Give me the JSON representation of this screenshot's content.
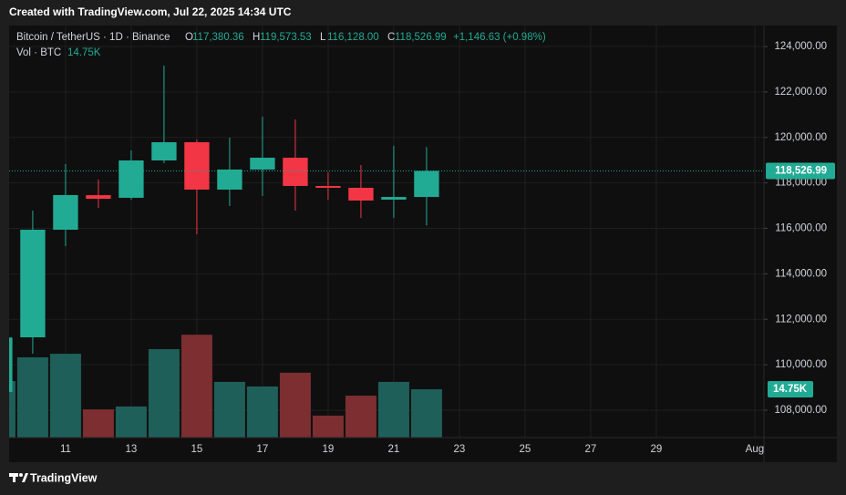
{
  "page": {
    "credit": "Created with TradingView.com, Jul 22, 2025 14:34 UTC",
    "brand": "TradingView"
  },
  "chart_data": {
    "type": "candlestick",
    "header": {
      "symbol": "Bitcoin / TetherUS · 1D · Binance",
      "o": "O",
      "o_value": "117,380.36",
      "h": "H",
      "h_value": "119,573.53",
      "l": "L",
      "l_value": "116,128.00",
      "c": "C",
      "c_value": "118,526.99",
      "change": "+1,146.63 (+0.98%)"
    },
    "x": [
      9,
      10,
      11,
      12,
      13,
      14,
      15,
      16,
      17,
      18,
      19,
      20,
      21,
      22
    ],
    "open": [
      108800,
      111208,
      115940,
      117460,
      117344,
      118987,
      119789,
      117704,
      118587,
      119108,
      117865,
      117784,
      117263,
      117380.36
    ],
    "high": [
      111500,
      116782,
      118827,
      118145,
      119429,
      123158,
      119910,
      119990,
      120912,
      120792,
      118466,
      118787,
      119629,
      119573.53
    ],
    "low": [
      108500,
      110486,
      115218,
      116902,
      117263,
      118867,
      115739,
      116983,
      117424,
      116782,
      117263,
      116461,
      116461,
      116128
    ],
    "close": [
      111200,
      115940,
      117464,
      117300,
      118987,
      119789,
      117704,
      118587,
      119108,
      117865,
      117784,
      117223,
      117380.36,
      118526.99
    ],
    "up_color": "#22ab94",
    "down_color": "#f23645",
    "volume": {
      "name": "Vol · BTC",
      "axis": "y2",
      "values": [
        17250,
        24500,
        25600,
        8600,
        9500,
        27000,
        31400,
        17000,
        15600,
        19800,
        6700,
        12800,
        17000,
        14750
      ],
      "last_label": "14.75K",
      "up_color": "#1f5f59",
      "down_color": "#7c2e30"
    },
    "last_price": {
      "value": 118526.99,
      "label": "118,526.99"
    },
    "xlim": [
      9.28,
      32.28
    ],
    "xticks": [
      11,
      13,
      15,
      17,
      19,
      21,
      23,
      25,
      27,
      29,
      {
        "value": 32,
        "label": "Aug"
      }
    ],
    "ylim": [
      106797,
      124922
    ],
    "yticks": [
      {
        "value": 108000,
        "label": "108,000.00"
      },
      {
        "value": 110000,
        "label": "110,000.00"
      },
      {
        "value": 112000,
        "label": "112,000.00"
      },
      {
        "value": 114000,
        "label": "114,000.00"
      },
      {
        "value": 116000,
        "label": "116,000.00"
      },
      {
        "value": 118000,
        "label": "118,000.00"
      },
      {
        "value": 120000,
        "label": "120,000.00"
      },
      {
        "value": 122000,
        "label": "122,000.00"
      },
      {
        "value": 124000,
        "label": "124,000.00"
      }
    ],
    "y2lim": [
      0,
      125800
    ],
    "grid": true
  }
}
